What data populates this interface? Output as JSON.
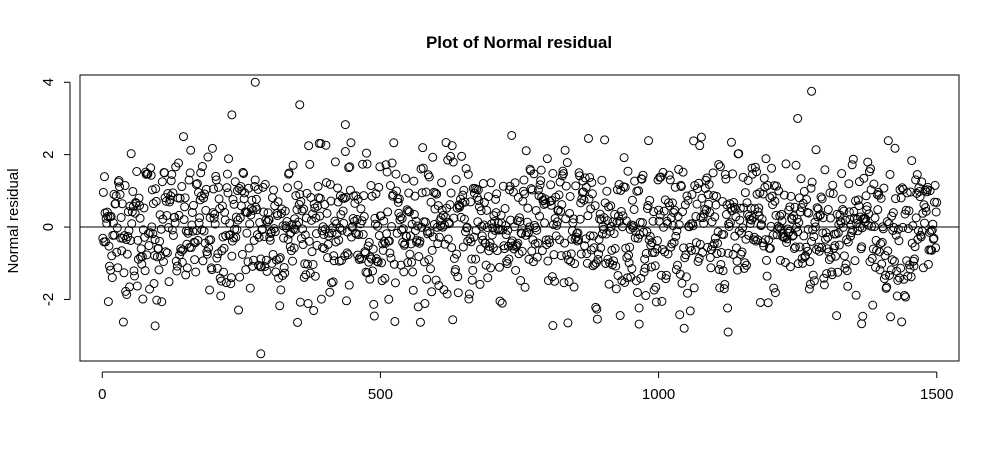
{
  "chart_data": {
    "type": "scatter",
    "title": "Plot of Normal residual",
    "xlabel": "",
    "ylabel": "Normal residual",
    "xlim": [
      -40,
      1540
    ],
    "ylim": [
      -3.7,
      4.2
    ],
    "xticks": [
      0,
      500,
      1000,
      1500
    ],
    "yticks": [
      -2,
      0,
      2,
      4
    ],
    "reference_line_y": 0,
    "grid": false,
    "marker": "open-circle",
    "n_points": 1500,
    "notable_points": [
      {
        "x": 275,
        "y": 4.0
      },
      {
        "x": 355,
        "y": 3.38
      },
      {
        "x": 233,
        "y": 3.1
      },
      {
        "x": 1275,
        "y": 3.75
      },
      {
        "x": 1250,
        "y": 3.0
      },
      {
        "x": 437,
        "y": 2.83
      },
      {
        "x": 285,
        "y": -3.5
      },
      {
        "x": 1125,
        "y": -2.9
      },
      {
        "x": 95,
        "y": -2.73
      },
      {
        "x": 1365,
        "y": -2.67
      },
      {
        "x": 810,
        "y": -2.72
      },
      {
        "x": 965,
        "y": -2.68
      }
    ]
  }
}
